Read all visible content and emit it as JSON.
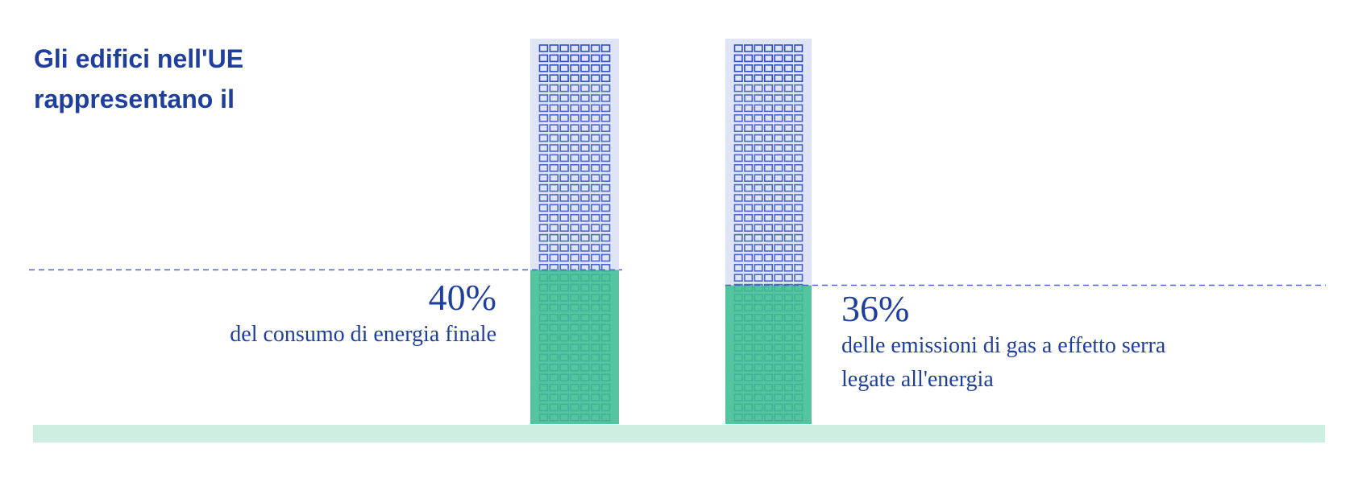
{
  "chart_data": {
    "type": "bar",
    "title": "Gli edifici nell'UE rappresentano il",
    "categories": [
      "del consumo di energia finale",
      "delle emissioni di gas a effetto serra legate all'energia"
    ],
    "values": [
      40,
      36
    ],
    "value_labels": [
      "40%",
      "36%"
    ],
    "color": "#3dbf8f",
    "ylim": [
      0,
      100
    ]
  }
}
